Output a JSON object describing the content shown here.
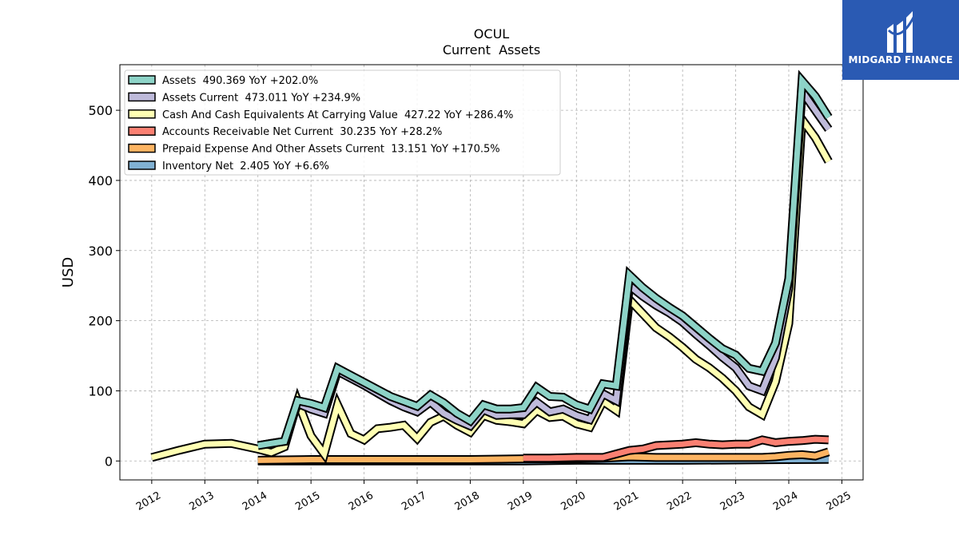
{
  "chart_data": {
    "type": "line",
    "title": "OCUL",
    "subtitle": "Current  Assets",
    "xlabel": "",
    "ylabel": "USD",
    "xlim": [
      2011.4,
      2025.4
    ],
    "ylim": [
      -27,
      565
    ],
    "yticks": [
      0,
      100,
      200,
      300,
      400,
      500
    ],
    "xticks": [
      "2012",
      "2013",
      "2014",
      "2015",
      "2016",
      "2017",
      "2018",
      "2019",
      "2020",
      "2021",
      "2022",
      "2023",
      "2024",
      "2025"
    ],
    "grid": true,
    "legend_position": "top-left",
    "series": [
      {
        "name": "Assets  490.369 YoY +202.0%",
        "color": "#8dd3c7",
        "x": [
          2014.0,
          2014.25,
          2014.5,
          2014.75,
          2015.0,
          2015.25,
          2015.5,
          2015.75,
          2016.0,
          2016.25,
          2016.5,
          2016.75,
          2017.0,
          2017.25,
          2017.5,
          2017.75,
          2018.0,
          2018.25,
          2018.5,
          2018.75,
          2019.0,
          2019.25,
          2019.5,
          2019.75,
          2020.0,
          2020.25,
          2020.5,
          2020.75,
          2021.0,
          2021.25,
          2021.5,
          2021.75,
          2022.0,
          2022.25,
          2022.5,
          2022.75,
          2023.0,
          2023.25,
          2023.5,
          2023.75,
          2024.0,
          2024.25,
          2024.5,
          2024.75
        ],
        "values": [
          22,
          25,
          28,
          86,
          82,
          76,
          132,
          122,
          112,
          102,
          92,
          85,
          78,
          94,
          83,
          68,
          57,
          80,
          74,
          74,
          76,
          105,
          92,
          91,
          80,
          74,
          110,
          107,
          265,
          247,
          232,
          219,
          207,
          191,
          175,
          160,
          151,
          132,
          128,
          168,
          260,
          542,
          520,
          490
        ]
      },
      {
        "name": "Assets Current  473.011 YoY +234.9%",
        "color": "#bebada",
        "x": [
          2014.0,
          2014.25,
          2014.5,
          2014.75,
          2015.0,
          2015.25,
          2015.5,
          2015.75,
          2016.0,
          2016.25,
          2016.5,
          2016.75,
          2017.0,
          2017.25,
          2017.5,
          2017.75,
          2018.0,
          2018.25,
          2018.5,
          2018.75,
          2019.0,
          2019.25,
          2019.5,
          2019.75,
          2020.0,
          2020.25,
          2020.5,
          2020.75,
          2021.0,
          2021.25,
          2021.5,
          2021.75,
          2022.0,
          2022.25,
          2022.5,
          2022.75,
          2023.0,
          2023.25,
          2023.5,
          2023.75,
          2024.0,
          2024.25,
          2024.5,
          2024.75
        ],
        "values": [
          22,
          25,
          28,
          82,
          74,
          68,
          128,
          118,
          108,
          97,
          86,
          77,
          70,
          84,
          68,
          58,
          50,
          73,
          65,
          66,
          66,
          84,
          70,
          74,
          65,
          59,
          96,
          86,
          250,
          235,
          222,
          211,
          198,
          181,
          165,
          148,
          133,
          107,
          100,
          147,
          246,
          527,
          500,
          473
        ]
      },
      {
        "name": "Cash And Cash Equivalents At Carrying Value  427.22 YoY +286.4%",
        "color": "#ffffb3",
        "x": [
          2012.0,
          2012.5,
          2013.0,
          2013.5,
          2014.0,
          2014.25,
          2014.5,
          2014.75,
          2015.0,
          2015.25,
          2015.5,
          2015.75,
          2016.0,
          2016.25,
          2016.5,
          2016.75,
          2017.0,
          2017.25,
          2017.5,
          2017.75,
          2018.0,
          2018.25,
          2018.5,
          2018.75,
          2019.0,
          2019.25,
          2019.5,
          2019.75,
          2020.0,
          2020.25,
          2020.5,
          2020.75,
          2021.0,
          2021.25,
          2021.5,
          2021.75,
          2022.0,
          2022.25,
          2022.5,
          2022.75,
          2023.0,
          2023.25,
          2023.5,
          2023.75,
          2024.0,
          2024.25,
          2024.5,
          2024.75
        ],
        "values": [
          5,
          15,
          24,
          25,
          17,
          12,
          20,
          85,
          36,
          10,
          80,
          39,
          30,
          46,
          48,
          51,
          32,
          55,
          64,
          51,
          41,
          65,
          58,
          56,
          53,
          72,
          62,
          64,
          53,
          48,
          85,
          72,
          230,
          210,
          190,
          177,
          162,
          145,
          133,
          118,
          100,
          77,
          66,
          113,
          196,
          487,
          461,
          427
        ]
      },
      {
        "name": "Accounts Receivable Net Current  30.235 YoY +28.2%",
        "color": "#fb8072",
        "x": [
          2019.0,
          2019.5,
          2020.0,
          2020.5,
          2020.75,
          2021.0,
          2021.25,
          2021.5,
          2021.75,
          2022.0,
          2022.25,
          2022.5,
          2022.75,
          2023.0,
          2023.25,
          2023.5,
          2023.75,
          2024.0,
          2024.25,
          2024.5,
          2024.75
        ],
        "values": [
          4,
          4,
          5,
          5,
          10,
          15,
          17,
          22,
          23,
          24,
          26,
          24,
          23,
          24,
          24,
          30,
          26,
          28,
          29,
          31,
          30
        ]
      },
      {
        "name": "Prepaid Expense And Other Assets Current  13.151 YoY +170.5%",
        "color": "#fdb462",
        "x": [
          2014.0,
          2015.0,
          2016.0,
          2017.0,
          2018.0,
          2019.0,
          2020.0,
          2020.5,
          2021.0,
          2021.5,
          2022.0,
          2022.5,
          2023.0,
          2023.5,
          2023.75,
          2024.0,
          2024.25,
          2024.5,
          2024.75
        ],
        "values": [
          1,
          2,
          2,
          2,
          2,
          3,
          3,
          4,
          6,
          5,
          5,
          5,
          5,
          5,
          6,
          8,
          9,
          7,
          13
        ]
      },
      {
        "name": "Inventory Net  2.405 YoY +6.6%",
        "color": "#80b1d3",
        "x": [
          2014.0,
          2015.0,
          2016.0,
          2017.0,
          2018.0,
          2019.0,
          2020.0,
          2021.0,
          2022.0,
          2023.0,
          2024.0,
          2024.75
        ],
        "values": [
          0,
          0,
          0,
          0,
          0,
          0,
          1,
          1,
          1,
          1.5,
          2,
          2.4
        ]
      }
    ]
  },
  "brand": {
    "name": "MIDGARD FINANCE",
    "color": "#2a5ab3"
  }
}
